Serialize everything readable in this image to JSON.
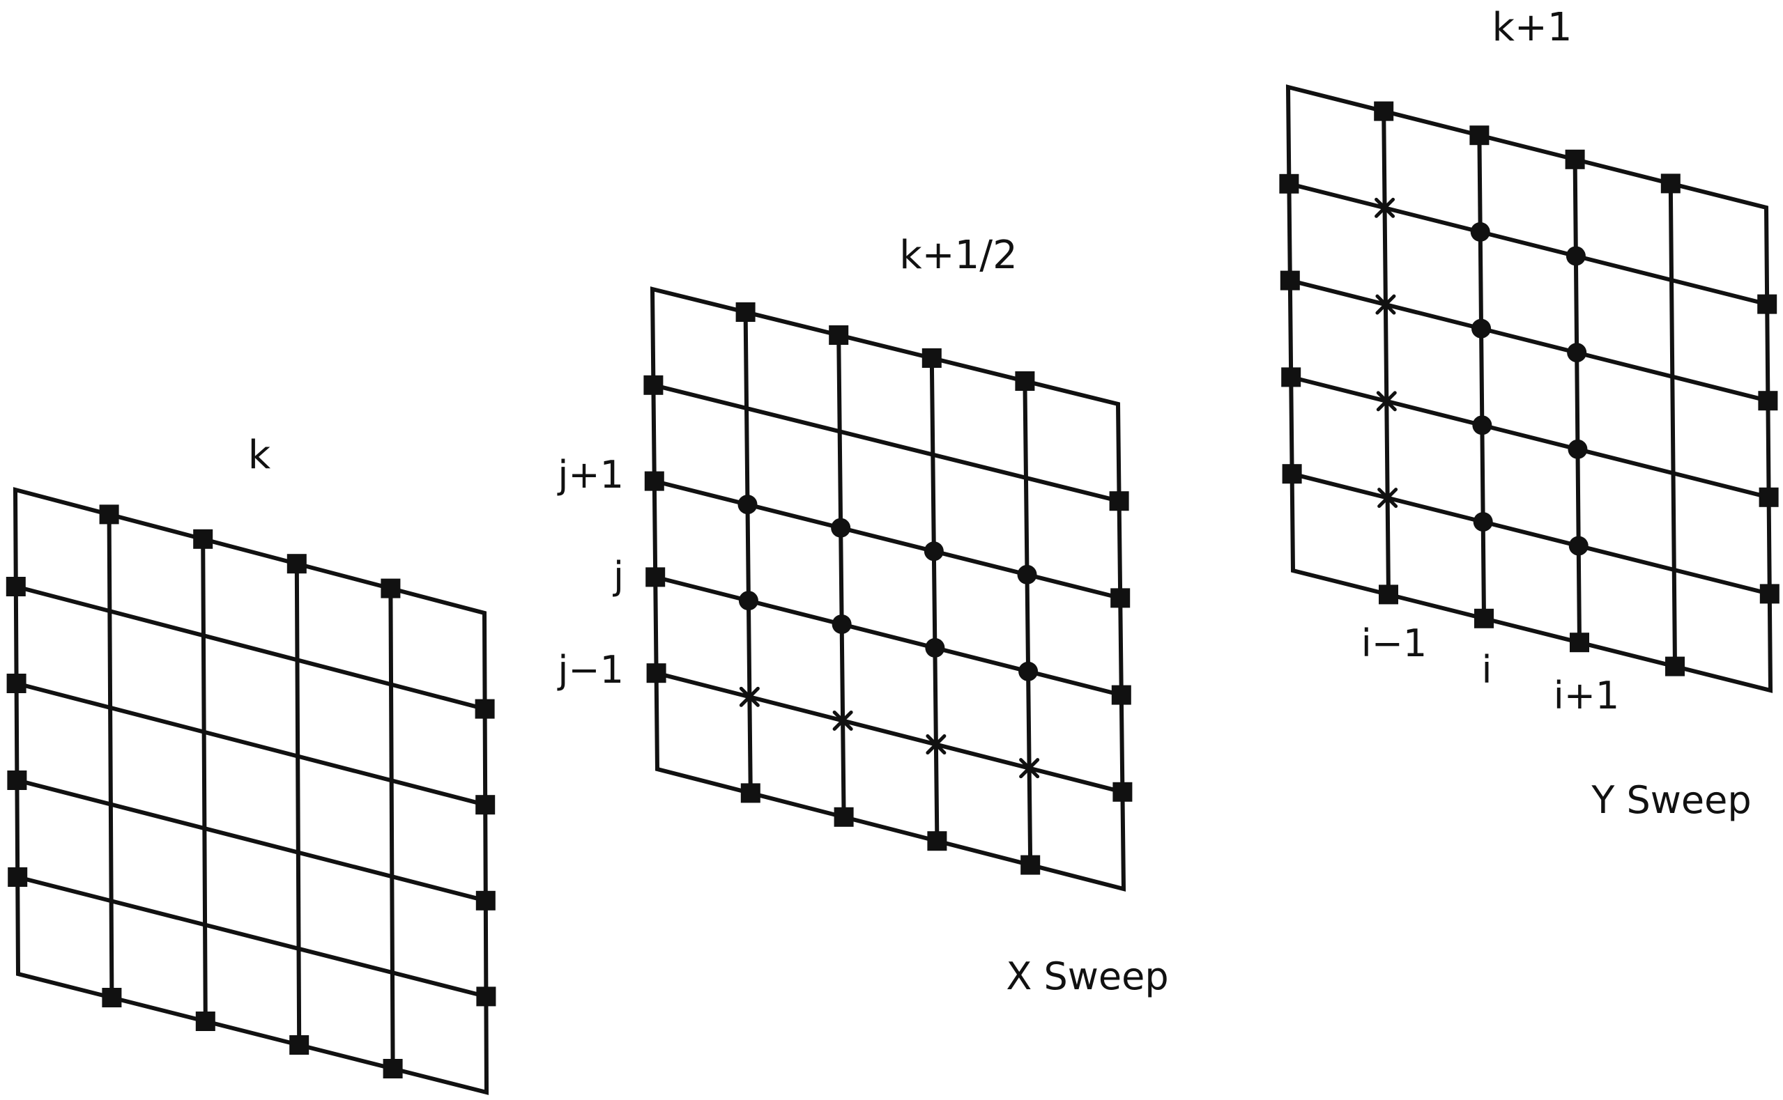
{
  "grids": [
    {
      "id": "grid-k",
      "title": "k",
      "caption": "",
      "row_labels": [],
      "col_labels": []
    },
    {
      "id": "grid-k-half",
      "title": "k+1/2",
      "caption": "X Sweep",
      "row_labels": [
        "j+1",
        "j",
        "j−1"
      ],
      "col_labels": []
    },
    {
      "id": "grid-k-plus-1",
      "title": "k+1",
      "caption": "Y Sweep",
      "row_labels": [],
      "col_labels": [
        "i−1",
        "i",
        "i+1"
      ]
    }
  ]
}
